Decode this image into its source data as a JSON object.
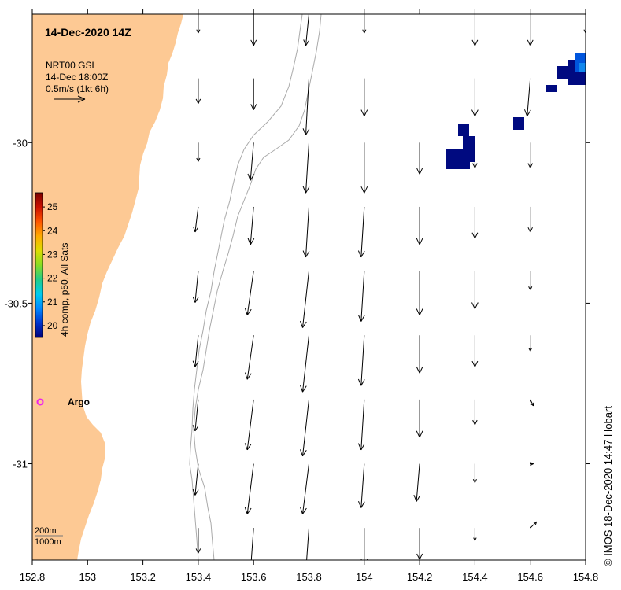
{
  "map": {
    "title": "14-Dec-2020 14Z",
    "product": {
      "line1": "NRT00 GSL",
      "line2": "14-Dec 18:00Z",
      "scale_label": "0.5m/s (1kt 6h)"
    },
    "colorbar": {
      "label": "4h comp, p50, All Sats",
      "ticks": [
        "20",
        "21",
        "22",
        "23",
        "24",
        "25"
      ],
      "range": [
        19.5,
        25.6
      ],
      "colors": [
        "#00007a",
        "#0033cc",
        "#0088ff",
        "#00ccee",
        "#22cc88",
        "#88dd22",
        "#dddd00",
        "#ffaa00",
        "#ff5500",
        "#cc1100",
        "#7a0000"
      ]
    },
    "depth_legend": [
      "200m",
      "1000m"
    ],
    "argo_label": "Argo",
    "credit": "© IMOS 18-Dec-2020 14:47 Hobart",
    "x_axis": {
      "ticks": [
        "152.8",
        "153",
        "153.2",
        "153.4",
        "153.6",
        "153.8",
        "154",
        "154.2",
        "154.4",
        "154.6",
        "154.8"
      ],
      "range": [
        152.8,
        154.8
      ]
    },
    "y_axis": {
      "ticks": [
        "-30",
        "-30.5",
        "-31"
      ],
      "tick_values": [
        -30,
        -30.5,
        -31
      ],
      "range": [
        -29.6,
        -31.3
      ]
    },
    "colors": {
      "land": "#fdc994",
      "isobath": "#aaaaaa",
      "arrow": "#000000",
      "argo": "#ee22ee",
      "sst_dark": "#000a80",
      "sst_mid": "#0055dd",
      "sst_light": "#1188ee"
    },
    "argo_position": {
      "lon": 152.83,
      "lat": -30.78
    },
    "current_grid": {
      "units": "arrow vector in degrees lon/lat per unit",
      "columns": [
        153.0,
        153.2,
        153.4,
        153.6,
        153.8,
        154.0,
        154.2,
        154.4,
        154.6,
        154.8
      ],
      "rows": [
        -29.6,
        -29.8,
        -30.0,
        -30.2,
        -30.4,
        -30.6,
        -30.8,
        -31.0,
        -31.2
      ],
      "vectors": [
        {
          "lon": 153.4,
          "lat": -29.6,
          "u": 0.0,
          "v": -0.6
        },
        {
          "lon": 153.6,
          "lat": -29.6,
          "u": 0.0,
          "v": -1.0
        },
        {
          "lon": 153.8,
          "lat": -29.6,
          "u": -0.1,
          "v": -1.0
        },
        {
          "lon": 154.0,
          "lat": -29.6,
          "u": 0.0,
          "v": -0.6
        },
        {
          "lon": 154.4,
          "lat": -29.6,
          "u": 0.0,
          "v": -1.0
        },
        {
          "lon": 154.6,
          "lat": -29.6,
          "u": 0.0,
          "v": -1.0
        },
        {
          "lon": 154.8,
          "lat": -29.6,
          "u": 0.0,
          "v": -0.6
        },
        {
          "lon": 153.4,
          "lat": -29.8,
          "u": 0.0,
          "v": -0.8
        },
        {
          "lon": 153.6,
          "lat": -29.8,
          "u": 0.0,
          "v": -1.0
        },
        {
          "lon": 153.8,
          "lat": -29.8,
          "u": -0.1,
          "v": -1.8
        },
        {
          "lon": 154.0,
          "lat": -29.8,
          "u": 0.0,
          "v": -1.2
        },
        {
          "lon": 154.4,
          "lat": -29.8,
          "u": 0.0,
          "v": -1.2
        },
        {
          "lon": 154.6,
          "lat": -29.8,
          "u": -0.1,
          "v": -1.2
        },
        {
          "lon": 153.4,
          "lat": -30.0,
          "u": 0.0,
          "v": -0.6
        },
        {
          "lon": 153.6,
          "lat": -30.0,
          "u": -0.1,
          "v": -1.2
        },
        {
          "lon": 153.8,
          "lat": -30.0,
          "u": -0.1,
          "v": -1.6
        },
        {
          "lon": 154.0,
          "lat": -30.0,
          "u": 0.0,
          "v": -1.6
        },
        {
          "lon": 154.2,
          "lat": -30.0,
          "u": 0.0,
          "v": -1.0
        },
        {
          "lon": 154.4,
          "lat": -30.0,
          "u": 0.0,
          "v": -0.8
        },
        {
          "lon": 154.6,
          "lat": -30.0,
          "u": 0.0,
          "v": -0.8
        },
        {
          "lon": 153.4,
          "lat": -30.2,
          "u": -0.1,
          "v": -0.8
        },
        {
          "lon": 153.6,
          "lat": -30.2,
          "u": -0.1,
          "v": -1.2
        },
        {
          "lon": 153.8,
          "lat": -30.2,
          "u": -0.1,
          "v": -1.6
        },
        {
          "lon": 154.0,
          "lat": -30.2,
          "u": -0.1,
          "v": -1.6
        },
        {
          "lon": 154.2,
          "lat": -30.2,
          "u": 0.0,
          "v": -1.2
        },
        {
          "lon": 154.4,
          "lat": -30.2,
          "u": 0.0,
          "v": -1.0
        },
        {
          "lon": 154.6,
          "lat": -30.2,
          "u": 0.0,
          "v": -0.8
        },
        {
          "lon": 153.4,
          "lat": -30.4,
          "u": -0.1,
          "v": -1.0
        },
        {
          "lon": 153.6,
          "lat": -30.4,
          "u": -0.2,
          "v": -1.4
        },
        {
          "lon": 153.8,
          "lat": -30.4,
          "u": -0.2,
          "v": -1.8
        },
        {
          "lon": 154.0,
          "lat": -30.4,
          "u": -0.1,
          "v": -1.6
        },
        {
          "lon": 154.2,
          "lat": -30.4,
          "u": 0.0,
          "v": -1.4
        },
        {
          "lon": 154.4,
          "lat": -30.4,
          "u": 0.0,
          "v": -1.2
        },
        {
          "lon": 154.6,
          "lat": -30.4,
          "u": 0.0,
          "v": -0.6
        },
        {
          "lon": 153.4,
          "lat": -30.6,
          "u": -0.1,
          "v": -1.0
        },
        {
          "lon": 153.6,
          "lat": -30.6,
          "u": -0.2,
          "v": -1.4
        },
        {
          "lon": 153.8,
          "lat": -30.6,
          "u": -0.2,
          "v": -1.8
        },
        {
          "lon": 154.0,
          "lat": -30.6,
          "u": -0.1,
          "v": -1.6
        },
        {
          "lon": 154.2,
          "lat": -30.6,
          "u": 0.0,
          "v": -1.2
        },
        {
          "lon": 154.4,
          "lat": -30.6,
          "u": 0.0,
          "v": -1.0
        },
        {
          "lon": 154.6,
          "lat": -30.6,
          "u": 0.0,
          "v": -0.5
        },
        {
          "lon": 153.4,
          "lat": -30.8,
          "u": -0.1,
          "v": -1.0
        },
        {
          "lon": 153.6,
          "lat": -30.8,
          "u": -0.2,
          "v": -1.6
        },
        {
          "lon": 153.8,
          "lat": -30.8,
          "u": -0.2,
          "v": -1.8
        },
        {
          "lon": 154.0,
          "lat": -30.8,
          "u": -0.1,
          "v": -1.6
        },
        {
          "lon": 154.2,
          "lat": -30.8,
          "u": 0.0,
          "v": -1.2
        },
        {
          "lon": 154.4,
          "lat": -30.8,
          "u": 0.0,
          "v": -0.8
        },
        {
          "lon": 154.6,
          "lat": -30.8,
          "u": 0.1,
          "v": -0.2
        },
        {
          "lon": 153.4,
          "lat": -31.0,
          "u": -0.1,
          "v": -1.0
        },
        {
          "lon": 153.6,
          "lat": -31.0,
          "u": -0.2,
          "v": -1.6
        },
        {
          "lon": 153.8,
          "lat": -31.0,
          "u": -0.2,
          "v": -1.6
        },
        {
          "lon": 154.0,
          "lat": -31.0,
          "u": -0.1,
          "v": -1.4
        },
        {
          "lon": 154.2,
          "lat": -31.0,
          "u": -0.1,
          "v": -1.2
        },
        {
          "lon": 154.4,
          "lat": -31.0,
          "u": 0.0,
          "v": -0.6
        },
        {
          "lon": 154.6,
          "lat": -31.0,
          "u": 0.1,
          "v": 0.0
        },
        {
          "lon": 153.4,
          "lat": -31.2,
          "u": 0.0,
          "v": -0.8
        },
        {
          "lon": 153.6,
          "lat": -31.2,
          "u": -0.1,
          "v": -1.4
        },
        {
          "lon": 153.8,
          "lat": -31.2,
          "u": -0.1,
          "v": -1.4
        },
        {
          "lon": 154.0,
          "lat": -31.2,
          "u": 0.0,
          "v": -1.2
        },
        {
          "lon": 154.2,
          "lat": -31.2,
          "u": 0.0,
          "v": -1.0
        },
        {
          "lon": 154.4,
          "lat": -31.2,
          "u": 0.0,
          "v": -0.4
        },
        {
          "lon": 154.6,
          "lat": -31.2,
          "u": 0.2,
          "v": 0.2
        }
      ]
    }
  }
}
